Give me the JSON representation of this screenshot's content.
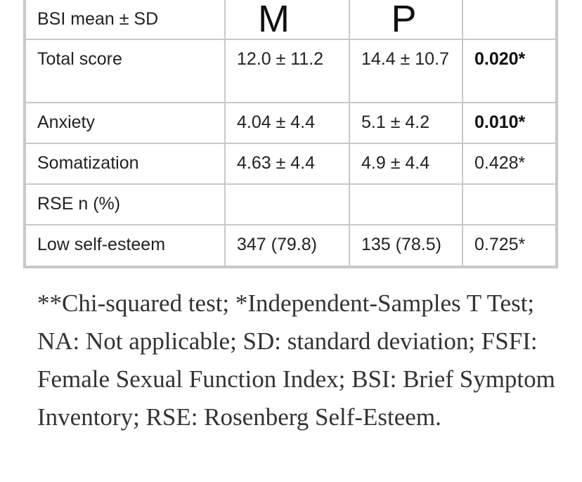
{
  "table": {
    "header": {
      "label": "BSI mean ± SD",
      "col_m": "M",
      "col_p": "P",
      "col_pval": ""
    },
    "rows": [
      {
        "label": "Total score",
        "m": "12.0 ± 11.2",
        "p": "14.4 ± 10.7",
        "pval": "0.020*",
        "pval_bold": true
      },
      {
        "label": "Anxiety",
        "m": "4.04 ± 4.4",
        "p": "5.1 ± 4.2",
        "pval": "0.010*",
        "pval_bold": true
      },
      {
        "label": "Somatization",
        "m": "4.63 ± 4.4",
        "p": "4.9 ± 4.4",
        "pval": "0.428*",
        "pval_bold": false
      },
      {
        "label": "RSE n (%)",
        "m": "",
        "p": "",
        "pval": "",
        "pval_bold": false
      },
      {
        "label": "Low self-esteem",
        "m": "347 (79.8)",
        "p": "135 (78.5)",
        "pval": "0.725*",
        "pval_bold": false
      }
    ]
  },
  "footnote": "**Chi-squared test; *Independent-Samples T Test; NA: Not applicable; SD: standard deviation; FSFI: Female Sexual Function Index; BSI: Brief Symptom Inventory; RSE: Rosenberg Self-Esteem.",
  "colors": {
    "border": "#c9c9c9",
    "text": "#222222",
    "footnote_text": "#333333"
  }
}
